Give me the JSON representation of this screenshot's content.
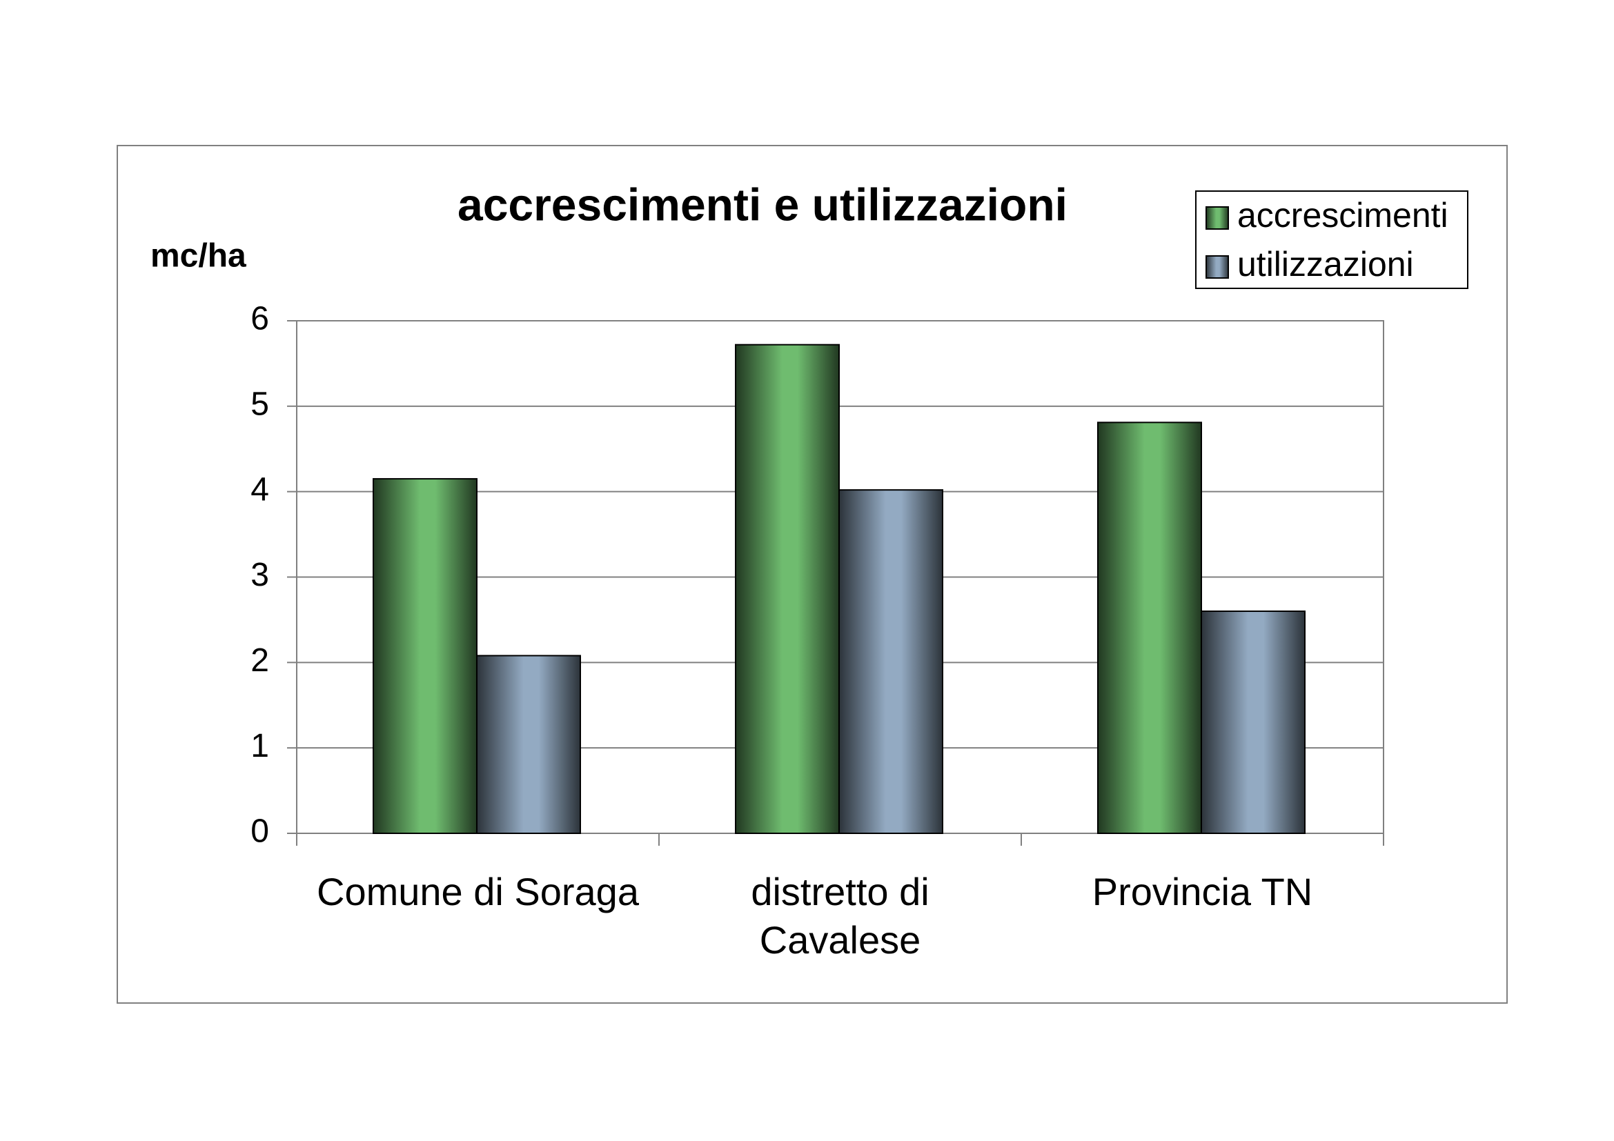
{
  "chart_data": {
    "type": "bar",
    "title": "accrescimenti e utilizzazioni",
    "y_label": "mc/ha",
    "categories": [
      "Comune di Soraga",
      "distretto di Cavalese",
      "Provincia TN"
    ],
    "series": [
      {
        "name": "accrescimenti",
        "color": "#6fbc6f",
        "values": [
          4.15,
          5.72,
          4.81
        ]
      },
      {
        "name": "utilizzazioni",
        "color": "#93aac2",
        "values": [
          2.08,
          4.02,
          2.6
        ]
      }
    ],
    "ylim": [
      0,
      6
    ],
    "yticks": [
      0,
      1,
      2,
      3,
      4,
      5,
      6
    ],
    "grid": true,
    "legend": "top-right"
  }
}
